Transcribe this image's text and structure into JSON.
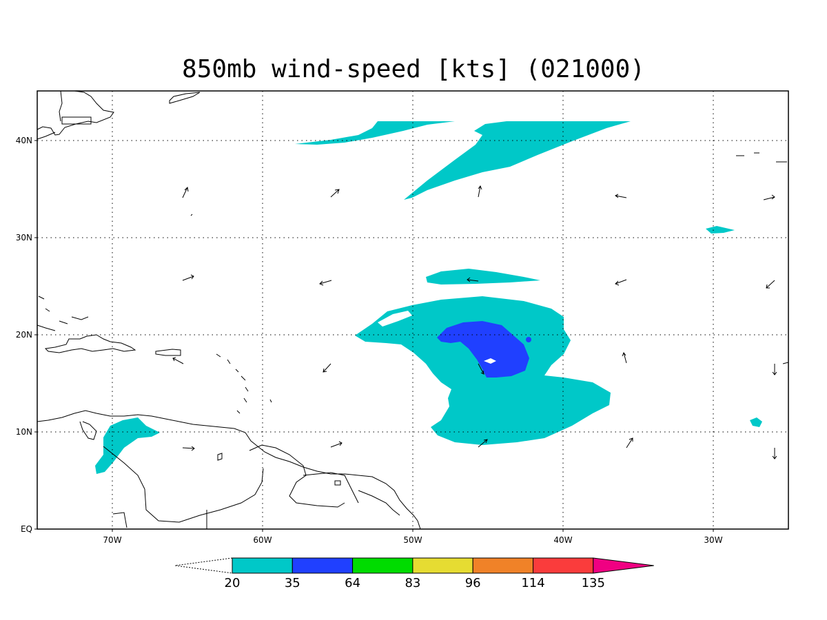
{
  "title": "850mb wind-speed [kts] (021000)",
  "axes": {
    "x_ticks": [
      "70W",
      "60W",
      "50W",
      "40W",
      "30W"
    ],
    "y_ticks": [
      "EQ",
      "10N",
      "20N",
      "30N",
      "40N"
    ]
  },
  "colorbar": {
    "levels": [
      "20",
      "35",
      "64",
      "83",
      "96",
      "114",
      "135"
    ],
    "colors": [
      "#00c8c8",
      "#2040ff",
      "#00dc00",
      "#e6dc32",
      "#f08228",
      "#fa3c3c",
      "#f00082"
    ]
  },
  "colors": {
    "cyan": "#00c8c8",
    "blue": "#2040ff",
    "grid": "#000000",
    "coast": "#000000"
  }
}
